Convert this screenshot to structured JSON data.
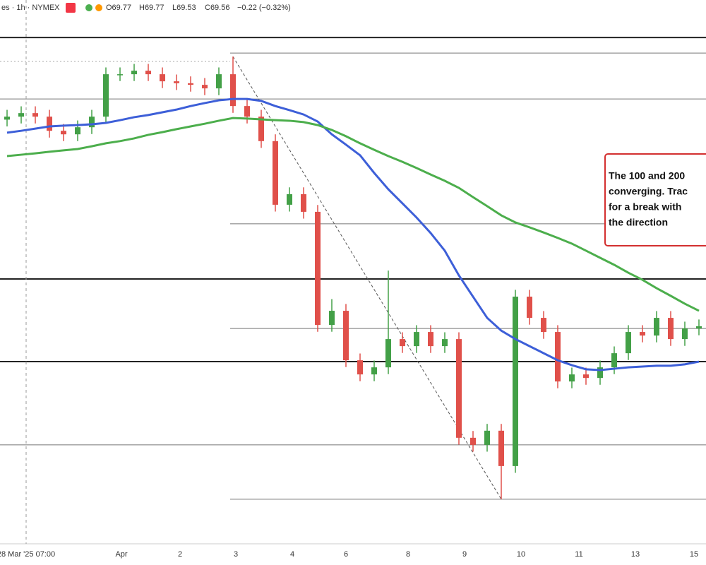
{
  "header": {
    "symbol": "es · 1h · NYMEX",
    "open": "O69.77",
    "high": "H69.77",
    "low": "L69.53",
    "close": "C69.56",
    "change": "−0.22 (−0.32%)"
  },
  "chart_data": {
    "type": "candlestick",
    "ylim": [
      54,
      74
    ],
    "up_color": "#43a047",
    "down_color": "#e0504a",
    "open": [
      69.6,
      69.71,
      69.84,
      69.71,
      69.19,
      69.06,
      69.32,
      69.71,
      71.27,
      71.27,
      71.4,
      71.27,
      71.01,
      70.94,
      70.88,
      70.75,
      71.27,
      70.1,
      69.71,
      68.81,
      66.47,
      66.86,
      66.21,
      62.05,
      62.57,
      60.75,
      60.23,
      60.49,
      61.53,
      61.27,
      61.79,
      61.27,
      61.53,
      57.9,
      57.64,
      58.16,
      56.86,
      63.09,
      62.31,
      61.79,
      59.97,
      60.23,
      60.1,
      60.49,
      61.01,
      61.79,
      61.66,
      62.31,
      61.53,
      61.92
    ],
    "high": [
      69.96,
      70.09,
      70.09,
      69.96,
      69.44,
      69.57,
      69.96,
      71.52,
      71.52,
      71.65,
      71.65,
      71.52,
      71.26,
      71.19,
      71.13,
      71.52,
      71.92,
      70.35,
      69.96,
      69.06,
      67.11,
      67.11,
      66.46,
      63.0,
      62.82,
      61.0,
      60.74,
      64.05,
      61.78,
      62.04,
      62.04,
      61.78,
      61.78,
      58.15,
      58.41,
      58.41,
      63.34,
      63.34,
      62.56,
      62.04,
      60.48,
      60.48,
      60.74,
      61.26,
      62.04,
      62.04,
      62.56,
      62.56,
      62.17,
      62.25
    ],
    "low": [
      69.35,
      69.46,
      69.46,
      68.94,
      68.81,
      68.81,
      69.07,
      69.46,
      71.02,
      71.02,
      71.02,
      70.76,
      70.69,
      70.63,
      70.5,
      70.5,
      69.85,
      69.46,
      68.56,
      66.22,
      66.22,
      65.96,
      61.8,
      61.8,
      60.5,
      59.98,
      59.98,
      60.24,
      61.02,
      61.02,
      61.02,
      61.02,
      57.65,
      57.39,
      57.39,
      55.64,
      56.61,
      62.06,
      61.54,
      59.72,
      59.72,
      59.85,
      59.85,
      60.24,
      60.76,
      61.41,
      61.41,
      61.28,
      61.28,
      61.67
    ],
    "close": [
      69.71,
      69.84,
      69.71,
      69.19,
      69.06,
      69.32,
      69.71,
      71.27,
      71.27,
      71.4,
      71.27,
      71.01,
      70.94,
      70.88,
      70.75,
      71.27,
      70.1,
      69.71,
      68.81,
      66.47,
      66.86,
      66.21,
      62.05,
      62.57,
      60.75,
      60.23,
      60.49,
      61.53,
      61.27,
      61.79,
      61.27,
      61.53,
      57.9,
      57.64,
      58.16,
      56.86,
      63.09,
      62.31,
      61.79,
      59.97,
      60.23,
      60.1,
      60.49,
      61.01,
      61.79,
      61.66,
      62.31,
      61.53,
      61.92,
      62.0
    ],
    "series": [
      {
        "color": "#3d5fd8",
        "values": [
          69.12,
          69.19,
          69.27,
          69.35,
          69.38,
          69.4,
          69.43,
          69.48,
          69.58,
          69.69,
          69.77,
          69.87,
          69.97,
          70.1,
          70.21,
          70.31,
          70.36,
          70.36,
          70.29,
          70.1,
          69.95,
          69.79,
          69.53,
          69.06,
          68.68,
          68.29,
          67.64,
          67.04,
          66.52,
          66.0,
          65.43,
          64.78,
          63.87,
          63.09,
          62.31,
          61.84,
          61.53,
          61.27,
          61.01,
          60.75,
          60.57,
          60.42,
          60.39,
          60.44,
          60.49,
          60.52,
          60.55,
          60.55,
          60.6,
          60.7
        ]
      },
      {
        "color": "#4cae4c",
        "values": [
          68.26,
          68.31,
          68.36,
          68.42,
          68.47,
          68.52,
          68.62,
          68.73,
          68.81,
          68.91,
          69.04,
          69.14,
          69.25,
          69.35,
          69.45,
          69.56,
          69.66,
          69.64,
          69.61,
          69.58,
          69.56,
          69.51,
          69.4,
          69.22,
          68.99,
          68.73,
          68.49,
          68.26,
          68.05,
          67.82,
          67.58,
          67.35,
          67.09,
          66.75,
          66.42,
          66.08,
          65.82,
          65.64,
          65.45,
          65.25,
          65.04,
          64.78,
          64.52,
          64.26,
          63.97,
          63.71,
          63.4,
          63.12,
          62.83,
          62.57
        ]
      }
    ],
    "levels": [
      {
        "value": 72.62,
        "style": "thick",
        "span": "all"
      },
      {
        "value": 72.05,
        "style": "thin",
        "span": "right"
      },
      {
        "value": 71.74,
        "style": "dotted",
        "span": "left"
      },
      {
        "value": 70.36,
        "style": "thin",
        "span": "all"
      },
      {
        "value": 65.77,
        "style": "thin",
        "span": "right"
      },
      {
        "value": 63.74,
        "style": "thick",
        "span": "all"
      },
      {
        "value": 61.92,
        "style": "thin",
        "span": "right"
      },
      {
        "value": 60.7,
        "style": "thick",
        "span": "all"
      },
      {
        "value": 57.64,
        "style": "thin",
        "span": "all"
      },
      {
        "value": 55.64,
        "style": "thin",
        "span": "right"
      }
    ],
    "crosshair": {
      "value": 1.35,
      "label": "28 Mar '25  07:00"
    },
    "xticks": [
      {
        "value": 8.1,
        "label": "Apr"
      },
      {
        "value": 12.25,
        "label": "2"
      },
      {
        "value": 16.2,
        "label": "3"
      },
      {
        "value": 20.2,
        "label": "4"
      },
      {
        "value": 24,
        "label": "6"
      },
      {
        "value": 28.4,
        "label": "8"
      },
      {
        "value": 32.4,
        "label": "9"
      },
      {
        "value": 36.4,
        "label": "10"
      },
      {
        "value": 40.5,
        "label": "11"
      },
      {
        "value": 44.5,
        "label": "13"
      },
      {
        "value": 48.65,
        "label": "15"
      }
    ],
    "annotation": [
      "The 100 and 200",
      "converging. Trac",
      "for a break with",
      "the direction"
    ]
  }
}
